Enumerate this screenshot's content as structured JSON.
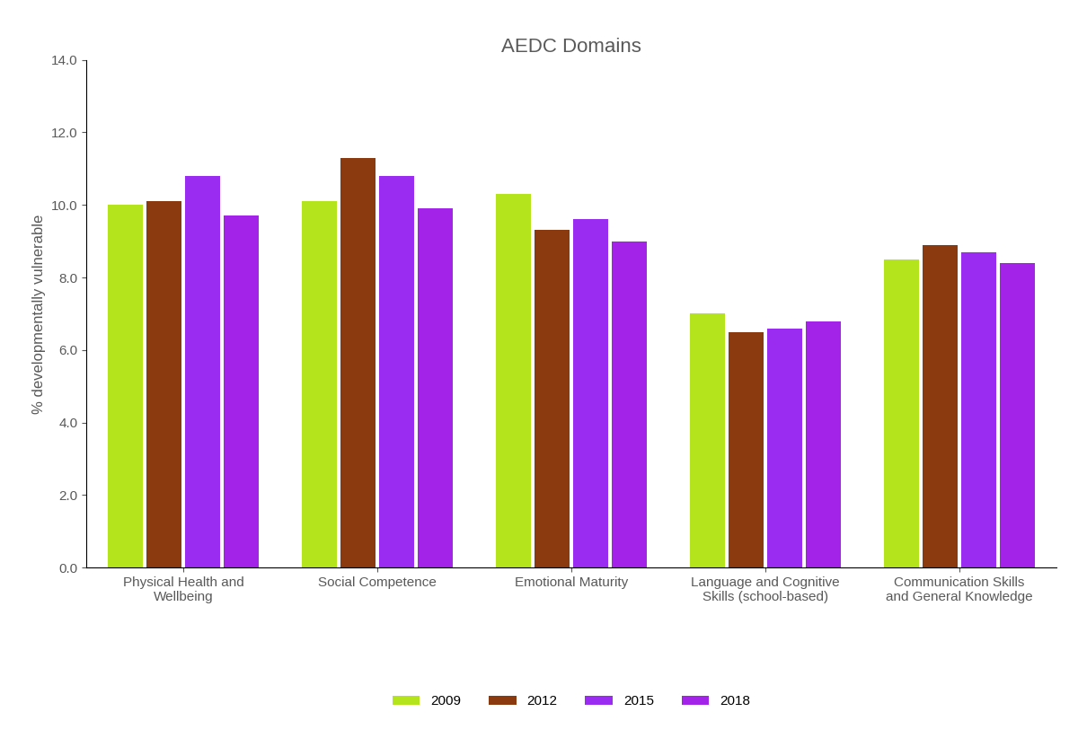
{
  "chart_data": {
    "type": "bar",
    "title": "AEDC Domains",
    "y_label": "% developmentally vulnerable",
    "categories": [
      "Physical Health and Wellbeing",
      "Social Competence",
      "Emotional Maturity",
      "Language and Cognitive Skills (school-based)",
      "Communication Skills and General Knowledge"
    ],
    "series": [
      {
        "name": "2009",
        "color": "#b4e41c",
        "values": [
          10.0,
          10.1,
          10.3,
          7.0,
          8.5
        ]
      },
      {
        "name": "2012",
        "color": "#8b3a0f",
        "values": [
          10.1,
          11.3,
          9.3,
          6.5,
          8.9
        ]
      },
      {
        "name": "2015",
        "color": "#9a2bf0",
        "values": [
          10.8,
          10.8,
          9.6,
          6.6,
          8.7
        ]
      },
      {
        "name": "2018",
        "color": "#a324e8",
        "values": [
          9.7,
          9.9,
          9.0,
          6.8,
          8.4
        ]
      }
    ],
    "ylim": [
      0,
      14
    ],
    "yticks": [
      {
        "value": 0,
        "label": "0.0"
      },
      {
        "value": 2,
        "label": "2.0"
      },
      {
        "value": 4,
        "label": "4.0"
      },
      {
        "value": 6,
        "label": "6.0"
      },
      {
        "value": 8,
        "label": "8.0"
      },
      {
        "value": 10,
        "label": "10.0"
      },
      {
        "value": 12,
        "label": "12.0"
      },
      {
        "value": 14,
        "label": "14.0"
      }
    ],
    "grid": false,
    "legend": "lower center"
  }
}
